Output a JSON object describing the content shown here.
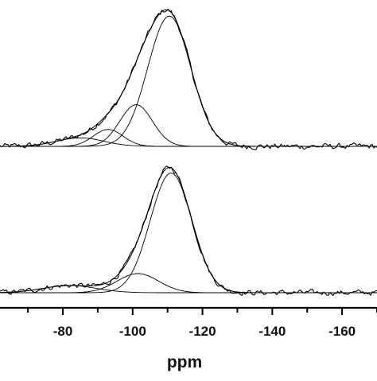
{
  "chart_data": {
    "type": "line",
    "title": "",
    "xlabel": "ppm",
    "ylabel": "",
    "xlim": [
      -62,
      -170
    ],
    "x_direction": "reversed",
    "xticks": [
      -80,
      -100,
      -120,
      -140,
      -160
    ],
    "xtick_labels": [
      "-80",
      "-100",
      "-120",
      "-140",
      "-160"
    ],
    "grid": false,
    "legend": "none",
    "panels": [
      {
        "position": "top",
        "ylim": [
          0,
          1.05
        ],
        "series": [
          {
            "role": "experimental",
            "noise": 0.035,
            "components": [
              {
                "center": -110.5,
                "amplitude": 1.0,
                "fwhm": 14.5
              },
              {
                "center": -101.0,
                "amplitude": 0.32,
                "fwhm": 11.0
              },
              {
                "center": -93.0,
                "amplitude": 0.13,
                "fwhm": 10.0
              },
              {
                "center": -85.0,
                "amplitude": 0.065,
                "fwhm": 16.0
              }
            ]
          },
          {
            "role": "fit-envelope",
            "components": [
              {
                "center": -110.5,
                "amplitude": 1.0,
                "fwhm": 14.5
              },
              {
                "center": -101.0,
                "amplitude": 0.32,
                "fwhm": 11.0
              },
              {
                "center": -93.0,
                "amplitude": 0.13,
                "fwhm": 10.0
              },
              {
                "center": -85.0,
                "amplitude": 0.065,
                "fwhm": 16.0
              }
            ]
          },
          {
            "role": "component",
            "center": -110.5,
            "amplitude": 1.0,
            "fwhm": 14.5
          },
          {
            "role": "component",
            "center": -101.0,
            "amplitude": 0.32,
            "fwhm": 11.0
          },
          {
            "role": "component",
            "center": -93.0,
            "amplitude": 0.13,
            "fwhm": 10.0
          },
          {
            "role": "component",
            "center": -85.0,
            "amplitude": 0.065,
            "fwhm": 16.0
          }
        ]
      },
      {
        "position": "bottom",
        "ylim": [
          0,
          1.05
        ],
        "series": [
          {
            "role": "experimental",
            "noise": 0.035,
            "components": [
              {
                "center": -111.0,
                "amplitude": 1.0,
                "fwhm": 14.0
              },
              {
                "center": -101.5,
                "amplitude": 0.16,
                "fwhm": 14.0
              },
              {
                "center": -82.0,
                "amplitude": 0.06,
                "fwhm": 18.0
              }
            ]
          },
          {
            "role": "fit-envelope",
            "components": [
              {
                "center": -111.0,
                "amplitude": 1.0,
                "fwhm": 14.0
              },
              {
                "center": -101.5,
                "amplitude": 0.16,
                "fwhm": 14.0
              },
              {
                "center": -82.0,
                "amplitude": 0.06,
                "fwhm": 18.0
              }
            ]
          },
          {
            "role": "component",
            "center": -111.0,
            "amplitude": 1.0,
            "fwhm": 14.0
          },
          {
            "role": "component",
            "center": -101.5,
            "amplitude": 0.16,
            "fwhm": 14.0
          },
          {
            "role": "component",
            "center": -82.0,
            "amplitude": 0.06,
            "fwhm": 18.0
          }
        ]
      }
    ]
  }
}
